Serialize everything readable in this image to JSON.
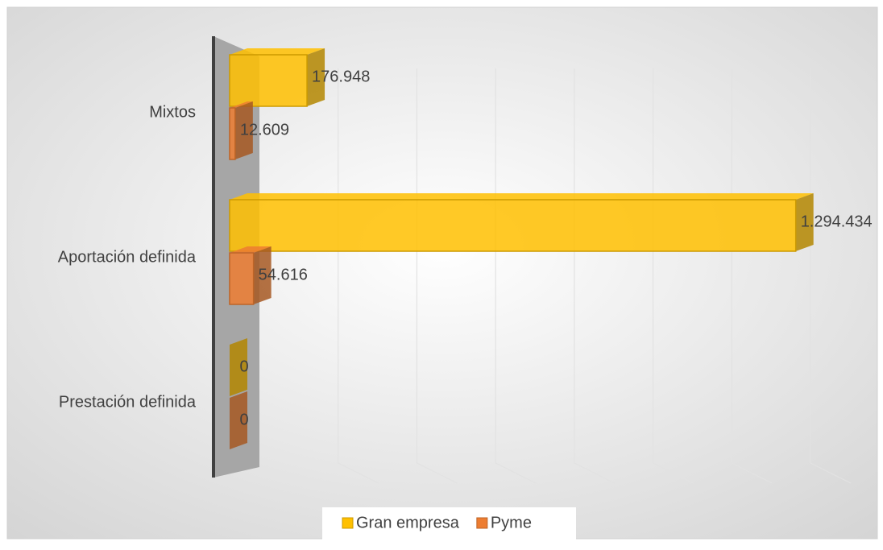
{
  "chart_data": {
    "type": "bar",
    "orientation": "horizontal",
    "categories": [
      "Mixtos",
      "Aportación definida",
      "Prestación definida"
    ],
    "series": [
      {
        "name": "Gran empresa",
        "color": "#ffc000",
        "values": [
          176948,
          1294434,
          0
        ],
        "value_labels": [
          "176.948",
          "1.294.434",
          "0"
        ]
      },
      {
        "name": "Pyme",
        "color": "#ed7d31",
        "values": [
          12609,
          54616,
          0
        ],
        "value_labels": [
          "12.609",
          "54.616",
          "0"
        ]
      }
    ],
    "xlim": [
      0,
      1400000
    ],
    "xticks": [
      0,
      200000,
      400000,
      600000,
      800000,
      1000000,
      1200000,
      1400000
    ],
    "grid": true,
    "legend": "bottom"
  }
}
